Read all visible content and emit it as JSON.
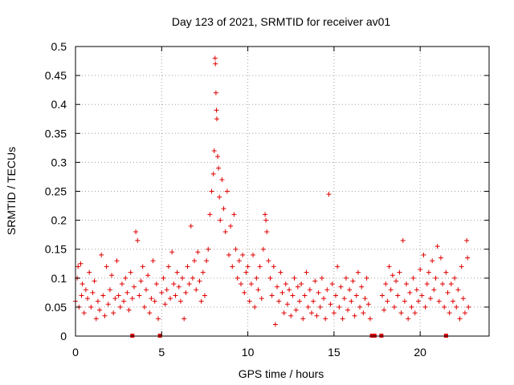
{
  "chart_data": {
    "type": "scatter",
    "title": "Day 123 of 2021, SRMTID for receiver av01",
    "xlabel": "GPS time / hours",
    "ylabel": "SRMTID / TECUs",
    "xlim": [
      0,
      24
    ],
    "ylim": [
      0,
      0.5
    ],
    "x_ticks": [
      0,
      5,
      10,
      15,
      20
    ],
    "x_tick_labels": [
      "0",
      "5",
      "10",
      "15",
      "20"
    ],
    "y_ticks": [
      0,
      0.05,
      0.1,
      0.15,
      0.2,
      0.25,
      0.3,
      0.35,
      0.4,
      0.45,
      0.5
    ],
    "y_tick_labels": [
      "0",
      "0.05",
      "0.1",
      "0.15",
      "0.2",
      "0.25",
      "0.3",
      "0.35",
      "0.4",
      "0.45",
      "0.5"
    ],
    "grid": true,
    "marker": "plus",
    "color": "#e00000",
    "series": [
      {
        "name": "SRMTID",
        "note": "dense noise band ~0.02-0.15 TECU; representative points",
        "points": [
          [
            0.0,
            0.06
          ],
          [
            0.1,
            0.1
          ],
          [
            0.15,
            0.12
          ],
          [
            0.2,
            0.05
          ],
          [
            0.3,
            0.125
          ],
          [
            0.35,
            0.07
          ],
          [
            0.4,
            0.09
          ],
          [
            0.5,
            0.04
          ],
          [
            0.6,
            0.08
          ],
          [
            0.7,
            0.065
          ],
          [
            0.8,
            0.11
          ],
          [
            0.9,
            0.05
          ],
          [
            1.0,
            0.075
          ],
          [
            1.1,
            0.095
          ],
          [
            1.2,
            0.03
          ],
          [
            1.3,
            0.06
          ],
          [
            1.4,
            0.045
          ],
          [
            1.5,
            0.14
          ],
          [
            1.6,
            0.07
          ],
          [
            1.7,
            0.035
          ],
          [
            1.8,
            0.12
          ],
          [
            1.9,
            0.055
          ],
          [
            2.0,
            0.08
          ],
          [
            2.1,
            0.105
          ],
          [
            2.2,
            0.04
          ],
          [
            2.3,
            0.065
          ],
          [
            2.4,
            0.13
          ],
          [
            2.5,
            0.07
          ],
          [
            2.6,
            0.05
          ],
          [
            2.7,
            0.09
          ],
          [
            2.8,
            0.06
          ],
          [
            2.9,
            0.1
          ],
          [
            3.0,
            0.075
          ],
          [
            3.1,
            0.045
          ],
          [
            3.2,
            0.11
          ],
          [
            3.3,
            0.065
          ],
          [
            3.4,
            0.085
          ],
          [
            3.5,
            0.18
          ],
          [
            3.6,
            0.165
          ],
          [
            3.7,
            0.07
          ],
          [
            3.8,
            0.095
          ],
          [
            3.9,
            0.12
          ],
          [
            4.0,
            0.05
          ],
          [
            4.1,
            0.08
          ],
          [
            4.2,
            0.105
          ],
          [
            4.3,
            0.04
          ],
          [
            4.4,
            0.065
          ],
          [
            4.5,
            0.13
          ],
          [
            4.6,
            0.06
          ],
          [
            4.7,
            0.09
          ],
          [
            4.8,
            0.03
          ],
          [
            5.0,
            0.075
          ],
          [
            5.1,
            0.1
          ],
          [
            5.2,
            0.055
          ],
          [
            5.3,
            0.08
          ],
          [
            5.4,
            0.12
          ],
          [
            5.5,
            0.065
          ],
          [
            5.6,
            0.145
          ],
          [
            5.7,
            0.09
          ],
          [
            5.8,
            0.07
          ],
          [
            5.9,
            0.11
          ],
          [
            6.0,
            0.085
          ],
          [
            6.1,
            0.06
          ],
          [
            6.2,
            0.1
          ],
          [
            6.3,
            0.03
          ],
          [
            6.4,
            0.075
          ],
          [
            6.5,
            0.12
          ],
          [
            6.6,
            0.09
          ],
          [
            6.7,
            0.19
          ],
          [
            6.8,
            0.1
          ],
          [
            6.9,
            0.13
          ],
          [
            7.0,
            0.08
          ],
          [
            7.1,
            0.145
          ],
          [
            7.2,
            0.095
          ],
          [
            7.3,
            0.06
          ],
          [
            7.4,
            0.11
          ],
          [
            7.5,
            0.07
          ],
          [
            7.6,
            0.13
          ],
          [
            7.7,
            0.15
          ],
          [
            7.8,
            0.21
          ],
          [
            7.9,
            0.25
          ],
          [
            8.0,
            0.28
          ],
          [
            8.05,
            0.32
          ],
          [
            8.1,
            0.48
          ],
          [
            8.12,
            0.47
          ],
          [
            8.15,
            0.42
          ],
          [
            8.18,
            0.39
          ],
          [
            8.2,
            0.375
          ],
          [
            8.25,
            0.31
          ],
          [
            8.3,
            0.29
          ],
          [
            8.35,
            0.24
          ],
          [
            8.4,
            0.2
          ],
          [
            8.5,
            0.27
          ],
          [
            8.6,
            0.22
          ],
          [
            8.7,
            0.18
          ],
          [
            8.8,
            0.25
          ],
          [
            8.9,
            0.14
          ],
          [
            9.0,
            0.19
          ],
          [
            9.1,
            0.12
          ],
          [
            9.2,
            0.21
          ],
          [
            9.3,
            0.15
          ],
          [
            9.4,
            0.1
          ],
          [
            9.5,
            0.13
          ],
          [
            9.6,
            0.09
          ],
          [
            9.7,
            0.14
          ],
          [
            9.8,
            0.075
          ],
          [
            9.9,
            0.11
          ],
          [
            10.0,
            0.12
          ],
          [
            10.1,
            0.06
          ],
          [
            10.2,
            0.09
          ],
          [
            10.3,
            0.14
          ],
          [
            10.4,
            0.05
          ],
          [
            10.5,
            0.1
          ],
          [
            10.6,
            0.08
          ],
          [
            10.7,
            0.12
          ],
          [
            10.8,
            0.065
          ],
          [
            10.9,
            0.15
          ],
          [
            11.0,
            0.21
          ],
          [
            11.05,
            0.2
          ],
          [
            11.1,
            0.18
          ],
          [
            11.2,
            0.13
          ],
          [
            11.3,
            0.1
          ],
          [
            11.4,
            0.07
          ],
          [
            11.5,
            0.12
          ],
          [
            11.6,
            0.02
          ],
          [
            11.7,
            0.085
          ],
          [
            11.8,
            0.06
          ],
          [
            11.9,
            0.11
          ],
          [
            12.0,
            0.075
          ],
          [
            12.1,
            0.04
          ],
          [
            12.2,
            0.09
          ],
          [
            12.3,
            0.055
          ],
          [
            12.4,
            0.08
          ],
          [
            12.5,
            0.035
          ],
          [
            12.6,
            0.07
          ],
          [
            12.7,
            0.1
          ],
          [
            12.8,
            0.045
          ],
          [
            12.9,
            0.085
          ],
          [
            13.0,
            0.06
          ],
          [
            13.1,
            0.09
          ],
          [
            13.2,
            0.03
          ],
          [
            13.3,
            0.07
          ],
          [
            13.4,
            0.11
          ],
          [
            13.5,
            0.05
          ],
          [
            13.6,
            0.08
          ],
          [
            13.7,
            0.04
          ],
          [
            13.8,
            0.06
          ],
          [
            13.9,
            0.095
          ],
          [
            14.0,
            0.035
          ],
          [
            14.1,
            0.075
          ],
          [
            14.2,
            0.05
          ],
          [
            14.3,
            0.1
          ],
          [
            14.4,
            0.065
          ],
          [
            14.5,
            0.03
          ],
          [
            14.6,
            0.08
          ],
          [
            14.7,
            0.245
          ],
          [
            14.8,
            0.055
          ],
          [
            14.9,
            0.09
          ],
          [
            15.0,
            0.04
          ],
          [
            15.1,
            0.07
          ],
          [
            15.2,
            0.12
          ],
          [
            15.3,
            0.05
          ],
          [
            15.4,
            0.085
          ],
          [
            15.5,
            0.03
          ],
          [
            15.6,
            0.065
          ],
          [
            15.7,
            0.1
          ],
          [
            15.8,
            0.045
          ],
          [
            15.9,
            0.08
          ],
          [
            16.0,
            0.06
          ],
          [
            16.1,
            0.095
          ],
          [
            16.2,
            0.035
          ],
          [
            16.3,
            0.07
          ],
          [
            16.4,
            0.11
          ],
          [
            16.5,
            0.05
          ],
          [
            16.6,
            0.085
          ],
          [
            16.7,
            0.04
          ],
          [
            16.8,
            0.065
          ],
          [
            16.9,
            0.1
          ],
          [
            17.0,
            0.055
          ],
          [
            17.1,
            0.03
          ],
          [
            17.8,
            0.07
          ],
          [
            17.9,
            0.045
          ],
          [
            18.0,
            0.09
          ],
          [
            18.1,
            0.06
          ],
          [
            18.2,
            0.12
          ],
          [
            18.3,
            0.08
          ],
          [
            18.4,
            0.105
          ],
          [
            18.5,
            0.05
          ],
          [
            18.6,
            0.095
          ],
          [
            18.7,
            0.07
          ],
          [
            18.8,
            0.11
          ],
          [
            18.9,
            0.04
          ],
          [
            19.0,
            0.165
          ],
          [
            19.1,
            0.06
          ],
          [
            19.2,
            0.09
          ],
          [
            19.3,
            0.03
          ],
          [
            19.4,
            0.075
          ],
          [
            19.5,
            0.05
          ],
          [
            19.6,
            0.1
          ],
          [
            19.7,
            0.04
          ],
          [
            19.8,
            0.08
          ],
          [
            19.9,
            0.06
          ],
          [
            20.0,
            0.115
          ],
          [
            20.1,
            0.07
          ],
          [
            20.2,
            0.14
          ],
          [
            20.3,
            0.05
          ],
          [
            20.4,
            0.09
          ],
          [
            20.5,
            0.11
          ],
          [
            20.6,
            0.065
          ],
          [
            20.7,
            0.13
          ],
          [
            20.8,
            0.08
          ],
          [
            20.9,
            0.1
          ],
          [
            21.0,
            0.155
          ],
          [
            21.1,
            0.06
          ],
          [
            21.2,
            0.135
          ],
          [
            21.3,
            0.09
          ],
          [
            21.4,
            0.05
          ],
          [
            21.5,
            0.11
          ],
          [
            21.6,
            0.075
          ],
          [
            21.7,
            0.04
          ],
          [
            21.8,
            0.09
          ],
          [
            21.9,
            0.06
          ],
          [
            22.0,
            0.1
          ],
          [
            22.1,
            0.05
          ],
          [
            22.2,
            0.08
          ],
          [
            22.3,
            0.03
          ],
          [
            22.4,
            0.12
          ],
          [
            22.5,
            0.065
          ],
          [
            22.6,
            0.04
          ],
          [
            22.7,
            0.165
          ],
          [
            22.75,
            0.135
          ],
          [
            22.8,
            0.05
          ]
        ]
      }
    ],
    "gap_markers": [
      3.3,
      4.9,
      17.2,
      17.35,
      17.75,
      21.5
    ]
  }
}
